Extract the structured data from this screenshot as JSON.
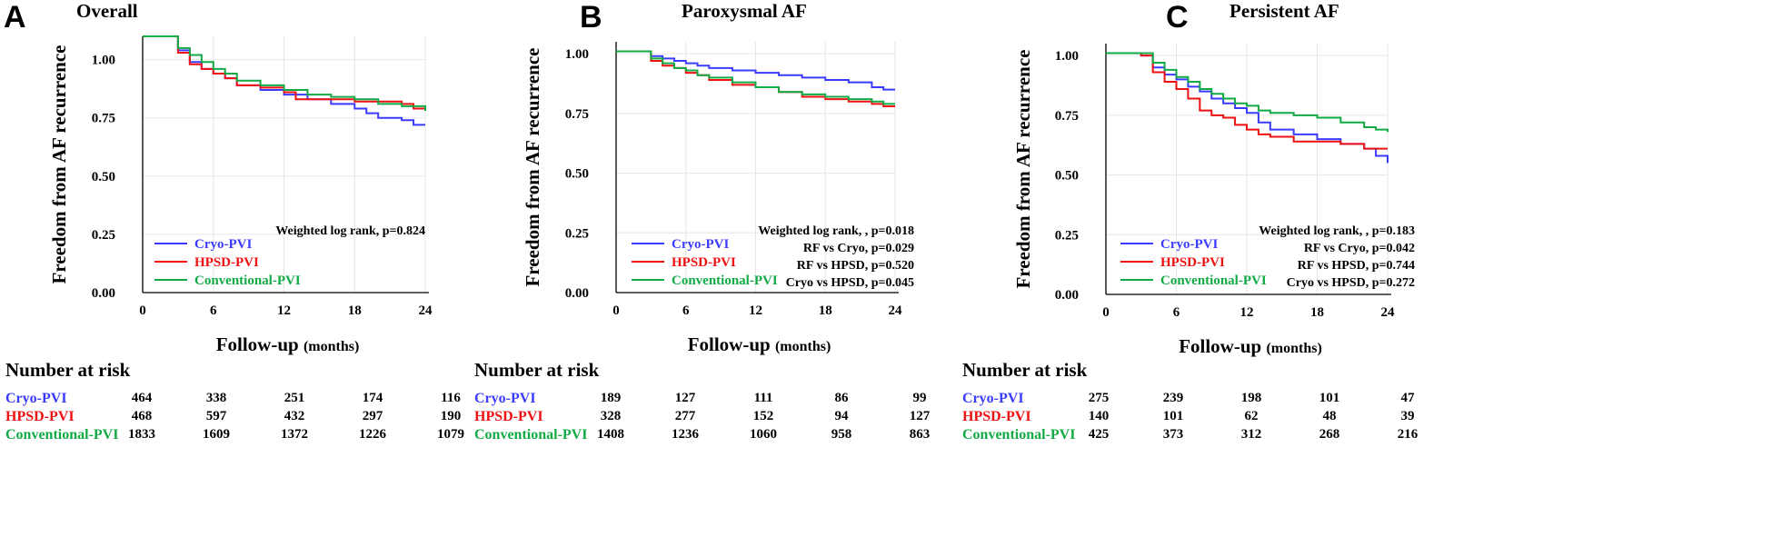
{
  "chart_data": [
    {
      "type": "line",
      "panel_letter": "A",
      "title": "Overall",
      "xlabel": "Follow-up",
      "xlabel_units": "(months)",
      "ylabel": "Freedom from AF recurrence",
      "xlim": [
        0,
        24
      ],
      "ylim": [
        0,
        1.1
      ],
      "x_ticks": [
        0,
        6,
        12,
        18,
        24
      ],
      "y_ticks": [
        0,
        0.25,
        0.5,
        0.75,
        1.0
      ],
      "y_tick_labels": [
        "0.00",
        "0.25",
        "0.50",
        "0.75",
        "1.00"
      ],
      "grid": true,
      "legend_position": "bottom-left",
      "annotations": [
        "Weighted log rank, p=0.824"
      ],
      "series": [
        {
          "name": "Cryo-PVI",
          "color": "#3b3bff",
          "x": [
            0,
            3,
            4,
            5,
            6,
            7,
            8,
            10,
            12,
            14,
            16,
            18,
            19,
            20,
            22,
            23,
            24
          ],
          "y": [
            1.1,
            1.04,
            0.99,
            0.96,
            0.94,
            0.92,
            0.89,
            0.87,
            0.85,
            0.83,
            0.81,
            0.79,
            0.77,
            0.75,
            0.74,
            0.72,
            0.72
          ]
        },
        {
          "name": "HPSD-PVI",
          "color": "#ee1111",
          "x": [
            0,
            3,
            4,
            5,
            6,
            7,
            8,
            10,
            12,
            13,
            15,
            18,
            20,
            22,
            23,
            24
          ],
          "y": [
            1.1,
            1.03,
            0.98,
            0.96,
            0.94,
            0.92,
            0.89,
            0.88,
            0.86,
            0.83,
            0.83,
            0.82,
            0.82,
            0.81,
            0.79,
            0.78
          ]
        },
        {
          "name": "Conventional-PVI",
          "color": "#11aa44",
          "x": [
            0,
            3,
            4,
            5,
            6,
            7,
            8,
            10,
            12,
            14,
            16,
            18,
            20,
            22,
            24
          ],
          "y": [
            1.1,
            1.05,
            1.02,
            0.99,
            0.96,
            0.94,
            0.91,
            0.89,
            0.87,
            0.85,
            0.84,
            0.83,
            0.81,
            0.8,
            0.78
          ]
        }
      ],
      "number_at_risk": {
        "header": "Number at risk",
        "rows": [
          {
            "name": "Cryo-PVI",
            "values": [
              464,
              338,
              251,
              174,
              116
            ]
          },
          {
            "name": "HPSD-PVI",
            "values": [
              468,
              597,
              432,
              297,
              190
            ]
          },
          {
            "name": "Conventional-PVI",
            "values": [
              1833,
              1609,
              1372,
              1226,
              1079
            ]
          }
        ]
      }
    },
    {
      "type": "line",
      "panel_letter": "B",
      "title": "Paroxysmal AF",
      "xlabel": "Follow-up",
      "xlabel_units": "(months)",
      "ylabel": "Freedom from AF recurrence",
      "xlim": [
        0,
        24
      ],
      "ylim": [
        0,
        1.05
      ],
      "x_ticks": [
        0,
        6,
        12,
        18,
        24
      ],
      "y_ticks": [
        0,
        0.25,
        0.5,
        0.75,
        1.0
      ],
      "y_tick_labels": [
        "0.00",
        "0.25",
        "0.50",
        "0.75",
        "1.00"
      ],
      "grid": true,
      "legend_position": "bottom-left",
      "annotations": [
        "Weighted log rank, , p=0.018",
        "RF vs Cryo, p=0.029",
        "RF vs HPSD, p=0.520",
        "Cryo vs HPSD, p=0.045"
      ],
      "series": [
        {
          "name": "Cryo-PVI",
          "color": "#3b3bff",
          "x": [
            0,
            3,
            4,
            5,
            6,
            7,
            8,
            10,
            12,
            14,
            16,
            18,
            20,
            22,
            23,
            24
          ],
          "y": [
            1.01,
            0.99,
            0.98,
            0.97,
            0.96,
            0.95,
            0.94,
            0.93,
            0.92,
            0.91,
            0.9,
            0.89,
            0.88,
            0.86,
            0.85,
            0.85
          ]
        },
        {
          "name": "HPSD-PVI",
          "color": "#ee1111",
          "x": [
            0,
            3,
            4,
            5,
            6,
            7,
            8,
            10,
            12,
            14,
            16,
            18,
            20,
            22,
            23,
            24
          ],
          "y": [
            1.01,
            0.97,
            0.95,
            0.94,
            0.92,
            0.91,
            0.89,
            0.87,
            0.86,
            0.84,
            0.82,
            0.81,
            0.8,
            0.79,
            0.78,
            0.78
          ]
        },
        {
          "name": "Conventional-PVI",
          "color": "#11aa44",
          "x": [
            0,
            3,
            4,
            5,
            6,
            7,
            8,
            10,
            12,
            14,
            16,
            18,
            20,
            22,
            23,
            24
          ],
          "y": [
            1.01,
            0.98,
            0.96,
            0.94,
            0.93,
            0.91,
            0.9,
            0.88,
            0.86,
            0.84,
            0.83,
            0.82,
            0.81,
            0.8,
            0.79,
            0.79
          ]
        }
      ],
      "number_at_risk": {
        "header": "Number at risk",
        "rows": [
          {
            "name": "Cryo-PVI",
            "values": [
              189,
              127,
              111,
              86,
              99
            ]
          },
          {
            "name": "HPSD-PVI",
            "values": [
              328,
              277,
              152,
              94,
              127
            ]
          },
          {
            "name": "Conventional-PVI",
            "values": [
              1408,
              1236,
              1060,
              958,
              863
            ]
          }
        ]
      }
    },
    {
      "type": "line",
      "panel_letter": "C",
      "title": "Persistent AF",
      "xlabel": "Follow-up",
      "xlabel_units": "(months)",
      "ylabel": "Freedom from AF recurrence",
      "xlim": [
        0,
        24
      ],
      "ylim": [
        0,
        1.05
      ],
      "x_ticks": [
        0,
        6,
        12,
        18,
        24
      ],
      "y_ticks": [
        0,
        0.25,
        0.5,
        0.75,
        1.0
      ],
      "y_tick_labels": [
        "0.00",
        "0.25",
        "0.50",
        "0.75",
        "1.00"
      ],
      "grid": true,
      "legend_position": "bottom-left",
      "annotations": [
        "Weighted log rank, , p=0.183",
        "RF vs Cryo, p=0.042",
        "RF vs HPSD, p=0.744",
        "Cryo vs HPSD, p=0.272"
      ],
      "series": [
        {
          "name": "Cryo-PVI",
          "color": "#3b3bff",
          "x": [
            0,
            3,
            4,
            5,
            6,
            7,
            8,
            9,
            10,
            11,
            12,
            13,
            14,
            16,
            18,
            20,
            22,
            23,
            24
          ],
          "y": [
            1.01,
            1.0,
            0.95,
            0.92,
            0.9,
            0.87,
            0.85,
            0.82,
            0.8,
            0.78,
            0.76,
            0.72,
            0.69,
            0.67,
            0.65,
            0.63,
            0.61,
            0.58,
            0.55
          ]
        },
        {
          "name": "HPSD-PVI",
          "color": "#ee1111",
          "x": [
            0,
            3,
            4,
            5,
            6,
            7,
            8,
            9,
            10,
            11,
            12,
            13,
            14,
            16,
            18,
            20,
            22,
            24
          ],
          "y": [
            1.01,
            1.0,
            0.93,
            0.89,
            0.86,
            0.82,
            0.77,
            0.75,
            0.74,
            0.71,
            0.69,
            0.67,
            0.66,
            0.64,
            0.64,
            0.63,
            0.61,
            0.61
          ]
        },
        {
          "name": "Conventional-PVI",
          "color": "#11aa44",
          "x": [
            0,
            3,
            4,
            5,
            6,
            7,
            8,
            9,
            10,
            11,
            12,
            13,
            14,
            16,
            18,
            20,
            22,
            23,
            24
          ],
          "y": [
            1.01,
            1.01,
            0.97,
            0.94,
            0.91,
            0.89,
            0.86,
            0.84,
            0.82,
            0.8,
            0.79,
            0.77,
            0.76,
            0.75,
            0.74,
            0.72,
            0.7,
            0.69,
            0.68
          ]
        }
      ],
      "number_at_risk": {
        "header": "Number at risk",
        "rows": [
          {
            "name": "Cryo-PVI",
            "values": [
              275,
              239,
              198,
              101,
              47
            ]
          },
          {
            "name": "HPSD-PVI",
            "values": [
              140,
              101,
              62,
              48,
              39
            ]
          },
          {
            "name": "Conventional-PVI",
            "values": [
              425,
              373,
              312,
              268,
              216
            ]
          }
        ]
      }
    }
  ]
}
